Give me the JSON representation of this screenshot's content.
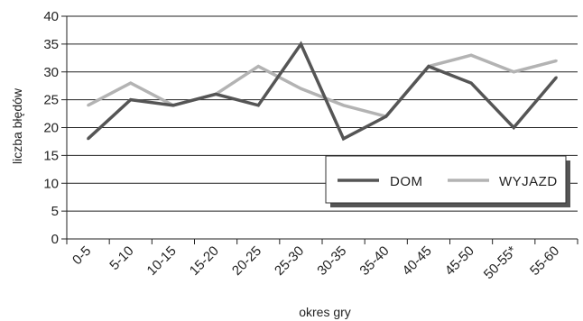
{
  "chart_data": {
    "type": "line",
    "categories": [
      "0-5",
      "5-10",
      "10-15",
      "15-20",
      "20-25",
      "25-30",
      "30-35",
      "35-40",
      "40-45",
      "45-50",
      "50-55*",
      "55-60"
    ],
    "series": [
      {
        "name": "DOM",
        "color": "#555555",
        "values": [
          18,
          25,
          24,
          26,
          24,
          35,
          18,
          22,
          31,
          28,
          20,
          29
        ]
      },
      {
        "name": "WYJAZD",
        "color": "#b3b3b3",
        "values": [
          24,
          28,
          24,
          26,
          31,
          27,
          24,
          22,
          31,
          33,
          30,
          32
        ]
      }
    ],
    "xlabel": "okres gry",
    "ylabel": "liczba błędów",
    "ylim": [
      0,
      40
    ],
    "yticks": [
      0,
      5,
      10,
      15,
      20,
      25,
      30,
      35,
      40
    ],
    "grid": true,
    "legend_position": "lower-right"
  }
}
